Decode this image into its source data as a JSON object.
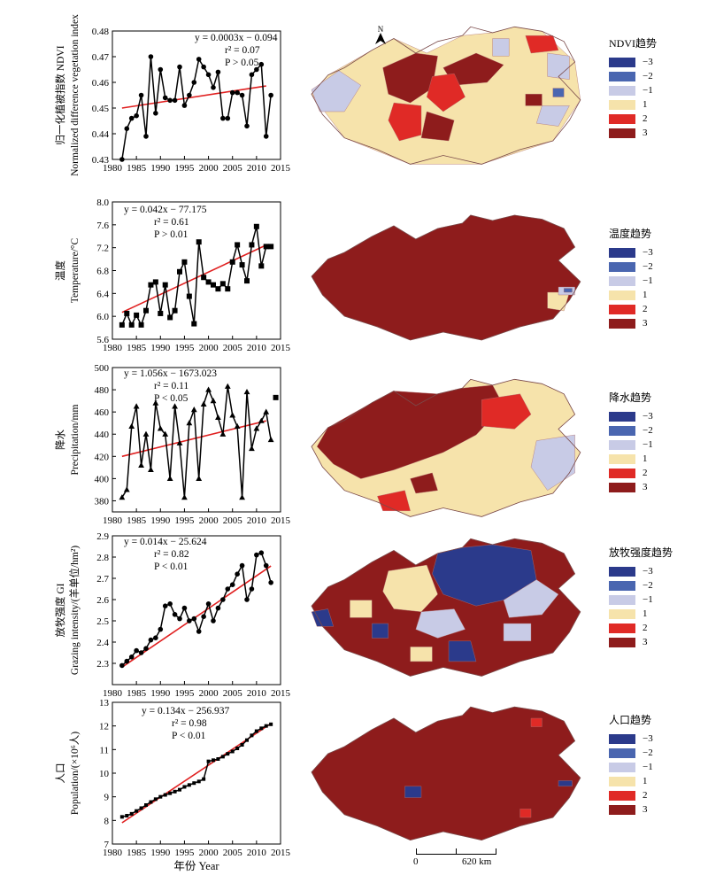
{
  "chart_data": [
    {
      "id": "ndvi",
      "type": "line",
      "ylabel_zh": "归一化植被指数 NDVI",
      "ylabel_en": "Normalized difference vegetation index",
      "ylim": [
        0.43,
        0.48
      ],
      "yticks": [
        "0.43",
        "0.44",
        "0.45",
        "0.46",
        "0.47",
        "0.48"
      ],
      "xlim": [
        1980,
        2015
      ],
      "xticks": [
        "1980",
        "1985",
        "1990",
        "1995",
        "2000",
        "2005",
        "2010",
        "2015"
      ],
      "marker": "circle",
      "eq": "y = 0.0003x − 0.094",
      "r2": "r² = 0.07",
      "p": "P > 0.05",
      "x": [
        1982,
        1983,
        1984,
        1985,
        1986,
        1987,
        1988,
        1989,
        1990,
        1991,
        1992,
        1993,
        1994,
        1995,
        1996,
        1997,
        1998,
        1999,
        2000,
        2001,
        2002,
        2003,
        2004,
        2005,
        2006,
        2007,
        2008,
        2009,
        2010,
        2011,
        2012,
        2013
      ],
      "values": [
        0.43,
        0.442,
        0.446,
        0.447,
        0.455,
        0.439,
        0.47,
        0.448,
        0.465,
        0.454,
        0.453,
        0.453,
        0.466,
        0.451,
        0.455,
        0.46,
        0.469,
        0.466,
        0.463,
        0.458,
        0.464,
        0.446,
        0.446,
        0.456,
        0.456,
        0.455,
        0.443,
        0.463,
        0.465,
        0.467,
        0.439,
        0.455
      ],
      "trend_x": [
        1982,
        2012
      ],
      "trend_y": [
        0.45,
        0.4586
      ]
    },
    {
      "id": "temperature",
      "type": "line",
      "ylabel_zh": "温度",
      "ylabel_en": "Temperature/°C",
      "ylim": [
        5.6,
        8.0
      ],
      "yticks": [
        "5.6",
        "6.0",
        "6.4",
        "6.8",
        "7.2",
        "7.6",
        "8.0"
      ],
      "xlim": [
        1980,
        2015
      ],
      "xticks": [
        "1980",
        "1985",
        "1990",
        "1995",
        "2000",
        "2005",
        "2010",
        "2015"
      ],
      "marker": "square",
      "eq": "y = 0.042x − 77.175",
      "r2": "r² = 0.61",
      "p": "P > 0.01",
      "x": [
        1982,
        1983,
        1984,
        1985,
        1986,
        1987,
        1988,
        1989,
        1990,
        1991,
        1992,
        1993,
        1994,
        1995,
        1996,
        1997,
        1998,
        1999,
        2000,
        2001,
        2002,
        2003,
        2004,
        2005,
        2006,
        2007,
        2008,
        2009,
        2010,
        2011,
        2012,
        2013
      ],
      "values": [
        5.85,
        6.05,
        5.85,
        6.02,
        5.85,
        6.1,
        6.55,
        6.6,
        6.05,
        6.55,
        5.98,
        6.1,
        6.78,
        6.95,
        6.35,
        5.87,
        7.3,
        6.68,
        6.6,
        6.55,
        6.48,
        6.57,
        6.48,
        6.95,
        7.25,
        6.9,
        6.62,
        7.25,
        7.57,
        6.88,
        7.22,
        7.22
      ],
      "trend_x": [
        1982,
        2012
      ],
      "trend_y": [
        6.069,
        7.245
      ]
    },
    {
      "id": "precipitation",
      "type": "line",
      "ylabel_zh": "降水",
      "ylabel_en": "Precipitation/mm",
      "ylim": [
        370,
        500
      ],
      "yticks": [
        "380",
        "400",
        "420",
        "440",
        "460",
        "480",
        "500"
      ],
      "xlim": [
        1980,
        2015
      ],
      "xticks": [
        "1980",
        "1985",
        "1990",
        "1995",
        "2000",
        "2005",
        "2010",
        "2015"
      ],
      "marker": "triangle",
      "eq": "y = 1.056x − 1673.023",
      "r2": "r² = 0.11",
      "p": "P < 0.05",
      "x": [
        1982,
        1983,
        1984,
        1985,
        1986,
        1987,
        1988,
        1989,
        1990,
        1991,
        1992,
        1993,
        1994,
        1995,
        1996,
        1997,
        1998,
        1999,
        2000,
        2001,
        2002,
        2003,
        2004,
        2005,
        2006,
        2007,
        2008,
        2009,
        2010,
        2011,
        2012,
        2013
      ],
      "values": [
        383,
        390,
        447,
        465,
        412,
        440,
        408,
        468,
        445,
        440,
        400,
        465,
        432,
        383,
        450,
        462,
        400,
        467,
        480,
        470,
        455,
        440,
        483,
        457,
        447,
        383,
        478,
        427,
        445,
        452,
        460,
        435
      ],
      "extra_point": {
        "x": 2014,
        "value": 473,
        "marker": "square"
      },
      "trend_x": [
        1982,
        2012
      ],
      "trend_y": [
        420.0,
        452.0
      ]
    },
    {
      "id": "grazing",
      "type": "line",
      "ylabel_zh": "放牧强度 GI",
      "ylabel_en": "Grazing intensity/(羊单位/hm²)",
      "ylim": [
        2.2,
        2.9
      ],
      "yticks": [
        "2.3",
        "2.4",
        "2.5",
        "2.6",
        "2.7",
        "2.8",
        "2.9"
      ],
      "xlim": [
        1980,
        2015
      ],
      "xticks": [
        "1980",
        "1985",
        "1990",
        "1995",
        "2000",
        "2005",
        "2010",
        "2015"
      ],
      "marker": "circle",
      "eq": "y = 0.014x − 25.624",
      "r2": "r² = 0.82",
      "p": "P < 0.01",
      "x": [
        1982,
        1983,
        1984,
        1985,
        1986,
        1987,
        1988,
        1989,
        1990,
        1991,
        1992,
        1993,
        1994,
        1995,
        1996,
        1997,
        1998,
        1999,
        2000,
        2001,
        2002,
        2003,
        2004,
        2005,
        2006,
        2007,
        2008,
        2009,
        2010,
        2011,
        2012,
        2013
      ],
      "values": [
        2.29,
        2.31,
        2.33,
        2.36,
        2.35,
        2.37,
        2.41,
        2.42,
        2.46,
        2.57,
        2.58,
        2.53,
        2.51,
        2.56,
        2.5,
        2.51,
        2.45,
        2.52,
        2.58,
        2.5,
        2.56,
        2.6,
        2.65,
        2.67,
        2.72,
        2.76,
        2.6,
        2.65,
        2.81,
        2.82,
        2.76,
        2.68
      ],
      "trend_x": [
        1982,
        2013
      ],
      "trend_y": [
        2.282,
        2.758
      ]
    },
    {
      "id": "population",
      "type": "line",
      "ylabel_zh": "人口",
      "ylabel_en": "Population/(×10⁶人)",
      "ylim": [
        7,
        13
      ],
      "yticks": [
        "7",
        "8",
        "9",
        "10",
        "11",
        "12",
        "13"
      ],
      "xlim": [
        1980,
        2015
      ],
      "xticks": [
        "1980",
        "1985",
        "1990",
        "1995",
        "2000",
        "2005",
        "2010",
        "2015"
      ],
      "marker": "square-small",
      "eq": "y = 0.134x − 256.937",
      "r2": "r² = 0.98",
      "p": "P < 0.01",
      "x": [
        1982,
        1983,
        1984,
        1985,
        1986,
        1987,
        1988,
        1989,
        1990,
        1991,
        1992,
        1993,
        1994,
        1995,
        1996,
        1997,
        1998,
        1999,
        2000,
        2001,
        2002,
        2003,
        2004,
        2005,
        2006,
        2007,
        2008,
        2009,
        2010,
        2011,
        2012,
        2013
      ],
      "values": [
        8.15,
        8.2,
        8.28,
        8.4,
        8.52,
        8.65,
        8.78,
        8.9,
        9.0,
        9.08,
        9.15,
        9.22,
        9.3,
        9.42,
        9.5,
        9.58,
        9.65,
        9.75,
        10.5,
        10.55,
        10.6,
        10.7,
        10.82,
        10.92,
        11.05,
        11.2,
        11.4,
        11.6,
        11.78,
        11.9,
        12.0,
        12.07
      ],
      "trend_x": [
        1982,
        2013
      ],
      "trend_y": [
        7.9,
        12.1
      ]
    }
  ],
  "x_axis_title": "年份 Year",
  "maps": [
    {
      "id": "ndvi",
      "legend_title": "NDVI趋势"
    },
    {
      "id": "temperature",
      "legend_title": "温度趋势"
    },
    {
      "id": "precipitation",
      "legend_title": "降水趋势"
    },
    {
      "id": "grazing",
      "legend_title": "放牧强度趋势"
    },
    {
      "id": "population",
      "legend_title": "人口趋势"
    }
  ],
  "legend_classes": [
    {
      "label": "−3",
      "color": "#2b3a8b"
    },
    {
      "label": "−2",
      "color": "#4a66b0"
    },
    {
      "label": "−1",
      "color": "#c8cbe6"
    },
    {
      "label": "1",
      "color": "#f6e3ab"
    },
    {
      "label": "2",
      "color": "#e02a26"
    },
    {
      "label": "3",
      "color": "#8e1c1c"
    }
  ],
  "scale_bar": {
    "start": "0",
    "end": "620 km"
  },
  "north_label": "N",
  "colors": {
    "series": "#000000",
    "trend": "#e02020",
    "map_border": "#b07070"
  }
}
